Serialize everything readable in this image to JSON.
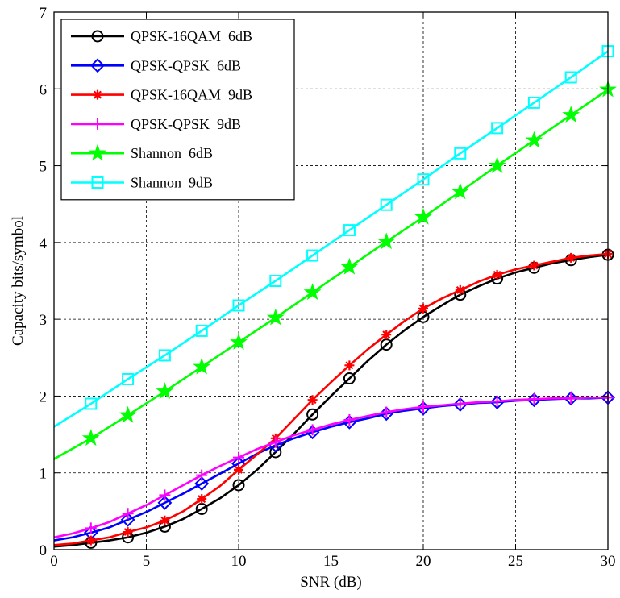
{
  "chart_data": {
    "type": "line",
    "title": "",
    "xlabel": "SNR (dB)",
    "ylabel": "Capacity  bits/symbol",
    "xlim": [
      0,
      30
    ],
    "ylim": [
      0,
      7
    ],
    "xticks": [
      0,
      5,
      10,
      15,
      20,
      25,
      30
    ],
    "yticks": [
      0,
      1,
      2,
      3,
      4,
      5,
      6,
      7
    ],
    "grid": true,
    "legend_position": "top-left",
    "series": [
      {
        "name": "QPSK-16QAM  6dB",
        "color": "#000000",
        "marker": "circle",
        "line_x": [
          0,
          1,
          2,
          3,
          4,
          5,
          6,
          7,
          8,
          9,
          10,
          11,
          12,
          13,
          14,
          15,
          16,
          17,
          18,
          19,
          20,
          21,
          22,
          23,
          24,
          25,
          26,
          27,
          28,
          29,
          30
        ],
        "line_y": [
          0.04,
          0.06,
          0.09,
          0.12,
          0.16,
          0.22,
          0.3,
          0.4,
          0.53,
          0.67,
          0.84,
          1.04,
          1.27,
          1.51,
          1.76,
          2.0,
          2.23,
          2.46,
          2.67,
          2.86,
          3.03,
          3.18,
          3.32,
          3.43,
          3.53,
          3.61,
          3.67,
          3.73,
          3.77,
          3.81,
          3.84
        ],
        "marker_x": [
          2,
          4,
          6,
          8,
          10,
          12,
          14,
          16,
          18,
          20,
          22,
          24,
          26,
          28,
          30
        ],
        "marker_y": [
          0.09,
          0.16,
          0.3,
          0.53,
          0.84,
          1.27,
          1.76,
          2.23,
          2.67,
          3.03,
          3.32,
          3.53,
          3.67,
          3.77,
          3.84
        ]
      },
      {
        "name": "QPSK-QPSK  6dB",
        "color": "#0000ff",
        "marker": "diamond",
        "line_x": [
          0,
          1,
          2,
          3,
          4,
          5,
          6,
          7,
          8,
          9,
          10,
          11,
          12,
          13,
          14,
          15,
          16,
          17,
          18,
          19,
          20,
          21,
          22,
          23,
          24,
          25,
          26,
          27,
          28,
          29,
          30
        ],
        "line_y": [
          0.12,
          0.16,
          0.22,
          0.29,
          0.39,
          0.49,
          0.61,
          0.73,
          0.86,
          0.99,
          1.12,
          1.25,
          1.36,
          1.45,
          1.53,
          1.6,
          1.66,
          1.71,
          1.77,
          1.81,
          1.84,
          1.87,
          1.89,
          1.91,
          1.92,
          1.94,
          1.95,
          1.96,
          1.97,
          1.97,
          1.98
        ],
        "marker_x": [
          2,
          4,
          6,
          8,
          10,
          12,
          14,
          16,
          18,
          20,
          22,
          24,
          26,
          28,
          30
        ],
        "marker_y": [
          0.22,
          0.39,
          0.61,
          0.86,
          1.12,
          1.36,
          1.53,
          1.66,
          1.77,
          1.84,
          1.89,
          1.92,
          1.95,
          1.97,
          1.98
        ]
      },
      {
        "name": "QPSK-16QAM  9dB",
        "color": "#ff0000",
        "marker": "plus-star",
        "line_x": [
          0,
          1,
          2,
          3,
          4,
          5,
          6,
          7,
          8,
          9,
          10,
          11,
          12,
          13,
          14,
          15,
          16,
          17,
          18,
          19,
          20,
          21,
          22,
          23,
          24,
          25,
          26,
          27,
          28,
          29,
          30
        ],
        "line_y": [
          0.06,
          0.08,
          0.12,
          0.16,
          0.23,
          0.29,
          0.38,
          0.5,
          0.66,
          0.83,
          1.04,
          1.24,
          1.45,
          1.7,
          1.95,
          2.18,
          2.4,
          2.61,
          2.8,
          2.98,
          3.14,
          3.27,
          3.38,
          3.49,
          3.58,
          3.65,
          3.7,
          3.75,
          3.8,
          3.83,
          3.85
        ],
        "marker_x": [
          2,
          4,
          6,
          8,
          10,
          12,
          14,
          16,
          18,
          20,
          22,
          24,
          26,
          28,
          30
        ],
        "marker_y": [
          0.12,
          0.23,
          0.38,
          0.66,
          1.04,
          1.45,
          1.95,
          2.4,
          2.8,
          3.14,
          3.38,
          3.58,
          3.7,
          3.8,
          3.85
        ]
      },
      {
        "name": "QPSK-QPSK  9dB",
        "color": "#ff00ff",
        "marker": "plus",
        "line_x": [
          0,
          1,
          2,
          3,
          4,
          5,
          6,
          7,
          8,
          9,
          10,
          11,
          12,
          13,
          14,
          15,
          16,
          17,
          18,
          19,
          20,
          21,
          22,
          23,
          24,
          25,
          26,
          27,
          28,
          29,
          30
        ],
        "line_y": [
          0.16,
          0.21,
          0.28,
          0.36,
          0.47,
          0.58,
          0.71,
          0.84,
          0.97,
          1.09,
          1.2,
          1.31,
          1.4,
          1.49,
          1.56,
          1.63,
          1.69,
          1.74,
          1.79,
          1.83,
          1.86,
          1.88,
          1.9,
          1.92,
          1.93,
          1.95,
          1.96,
          1.97,
          1.97,
          1.98,
          1.98
        ],
        "marker_x": [
          2,
          4,
          6,
          8,
          10,
          12,
          14,
          16,
          18,
          20,
          22,
          24,
          26,
          28,
          30
        ],
        "marker_y": [
          0.28,
          0.47,
          0.71,
          0.97,
          1.2,
          1.4,
          1.56,
          1.69,
          1.79,
          1.86,
          1.9,
          1.93,
          1.96,
          1.97,
          1.98
        ]
      },
      {
        "name": "Shannon  6dB",
        "color": "#00ff00",
        "marker": "star",
        "line_x": [
          0,
          2,
          4,
          6,
          8,
          10,
          12,
          14,
          16,
          18,
          20,
          22,
          24,
          26,
          28,
          30
        ],
        "line_y": [
          1.18,
          1.45,
          1.75,
          2.06,
          2.38,
          2.7,
          3.02,
          3.35,
          3.68,
          4.01,
          4.33,
          4.66,
          5.0,
          5.33,
          5.66,
          5.99
        ],
        "marker_x": [
          2,
          4,
          6,
          8,
          10,
          12,
          14,
          16,
          18,
          20,
          22,
          24,
          26,
          28,
          30
        ],
        "marker_y": [
          1.45,
          1.75,
          2.06,
          2.38,
          2.7,
          3.02,
          3.35,
          3.68,
          4.01,
          4.33,
          4.66,
          5.0,
          5.33,
          5.66,
          5.99
        ]
      },
      {
        "name": "Shannon  9dB",
        "color": "#00ffff",
        "marker": "square",
        "line_x": [
          0,
          2,
          4,
          6,
          8,
          10,
          12,
          14,
          16,
          18,
          20,
          22,
          24,
          26,
          28,
          30
        ],
        "line_y": [
          1.6,
          1.9,
          2.22,
          2.53,
          2.85,
          3.18,
          3.5,
          3.83,
          4.16,
          4.49,
          4.82,
          5.16,
          5.49,
          5.82,
          6.15,
          6.49
        ],
        "marker_x": [
          2,
          4,
          6,
          8,
          10,
          12,
          14,
          16,
          18,
          20,
          22,
          24,
          26,
          28,
          30
        ],
        "marker_y": [
          1.9,
          2.22,
          2.53,
          2.85,
          3.18,
          3.5,
          3.83,
          4.16,
          4.49,
          4.82,
          5.16,
          5.49,
          5.82,
          6.15,
          6.49
        ]
      }
    ]
  }
}
